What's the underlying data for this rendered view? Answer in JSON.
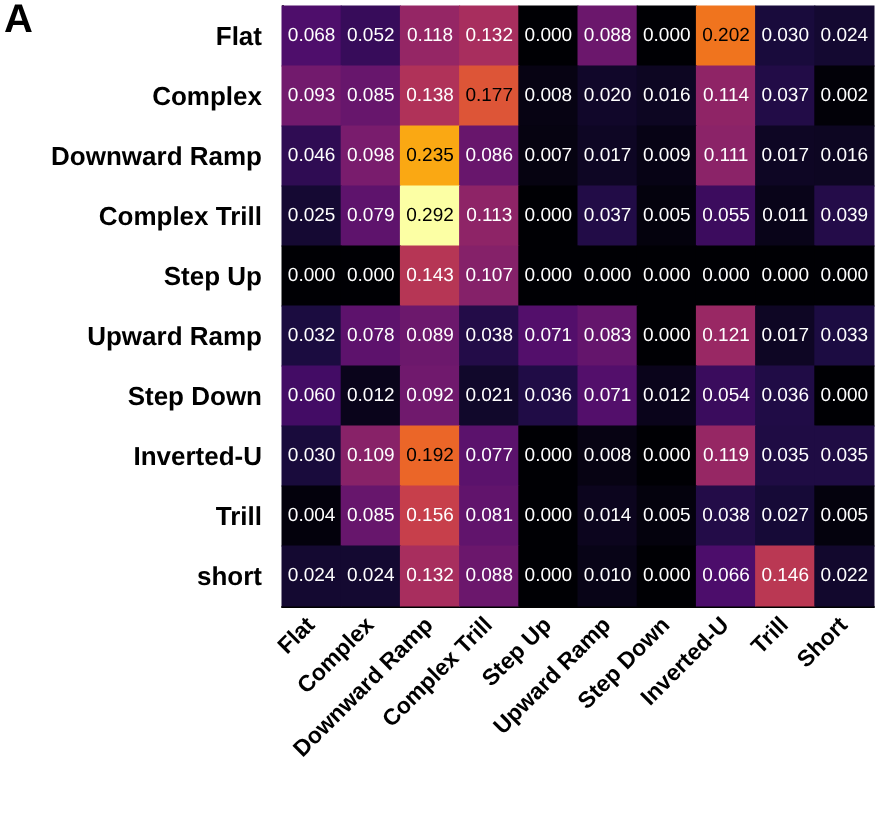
{
  "chart_data": {
    "type": "heatmap",
    "annotations": [
      "A"
    ],
    "categories": [
      "Flat",
      "Complex",
      "Downward Ramp",
      "Complex Trill",
      "Step Up",
      "Upward Ramp",
      "Step Down",
      "Inverted-U",
      "Trill",
      "Short"
    ],
    "y_categories": [
      "Flat",
      "Complex",
      "Downward Ramp",
      "Complex Trill",
      "Step Up",
      "Upward Ramp",
      "Step Down",
      "Inverted-U",
      "Trill",
      "short"
    ],
    "cells": [
      [
        0.068,
        0.052,
        0.118,
        0.132,
        0.0,
        0.088,
        0.0,
        0.202,
        0.03,
        0.024
      ],
      [
        0.093,
        0.085,
        0.138,
        0.177,
        0.008,
        0.02,
        0.016,
        0.114,
        0.037,
        0.002
      ],
      [
        0.046,
        0.098,
        0.235,
        0.086,
        0.007,
        0.017,
        0.009,
        0.111,
        0.017,
        0.016
      ],
      [
        0.025,
        0.079,
        0.292,
        0.113,
        0.0,
        0.037,
        0.005,
        0.055,
        0.011,
        0.039
      ],
      [
        0.0,
        0.0,
        0.143,
        0.107,
        0.0,
        0.0,
        0.0,
        0.0,
        0.0,
        0.0
      ],
      [
        0.032,
        0.078,
        0.089,
        0.038,
        0.071,
        0.083,
        0.0,
        0.121,
        0.017,
        0.033
      ],
      [
        0.06,
        0.012,
        0.092,
        0.021,
        0.036,
        0.071,
        0.012,
        0.054,
        0.036,
        0.0
      ],
      [
        0.03,
        0.109,
        0.192,
        0.077,
        0.0,
        0.008,
        0.0,
        0.119,
        0.035,
        0.035
      ],
      [
        0.004,
        0.085,
        0.156,
        0.081,
        0.0,
        0.014,
        0.005,
        0.038,
        0.027,
        0.005
      ],
      [
        0.024,
        0.024,
        0.132,
        0.088,
        0.0,
        0.01,
        0.0,
        0.066,
        0.146,
        0.022
      ]
    ],
    "cell_labels": [
      [
        "0.068",
        "0.052",
        "0.118",
        "0.132",
        "0.000",
        "0.088",
        "0.000",
        "0.202",
        "0.030",
        "0.024"
      ],
      [
        "0.093",
        "0.085",
        "0.138",
        "0.177",
        "0.008",
        "0.020",
        "0.016",
        "0.114",
        "0.037",
        "0.002"
      ],
      [
        "0.046",
        "0.098",
        "0.235",
        "0.086",
        "0.007",
        "0.017",
        "0.009",
        "0.111",
        "0.017",
        "0.016"
      ],
      [
        "0.025",
        "0.079",
        "0.292",
        "0.113",
        "0.000",
        "0.037",
        "0.005",
        "0.055",
        "0.011",
        "0.039"
      ],
      [
        "0.000",
        "0.000",
        "0.143",
        "0.107",
        "0.000",
        "0.000",
        "0.000",
        "0.000",
        "0.000",
        "0.000"
      ],
      [
        "0.032",
        "0.078",
        "0.089",
        "0.038",
        "0.071",
        "0.083",
        "0.000",
        "0.121",
        "0.017",
        "0.033"
      ],
      [
        "0.060",
        "0.012",
        "0.092",
        "0.021",
        "0.036",
        "0.071",
        "0.012",
        "0.054",
        "0.036",
        "0.000"
      ],
      [
        "0.030",
        "0.109",
        "0.192",
        "0.077",
        "0.000",
        "0.008",
        "0.000",
        "0.119",
        "0.035",
        "0.035"
      ],
      [
        "0.004",
        "0.085",
        "0.156",
        "0.081",
        "0.000",
        "0.014",
        "0.005",
        "0.038",
        "0.027",
        "0.005"
      ],
      [
        "0.024",
        "0.024",
        "0.132",
        "0.088",
        "0.000",
        "0.010",
        "0.000",
        "0.066",
        "0.146",
        "0.022"
      ]
    ]
  }
}
